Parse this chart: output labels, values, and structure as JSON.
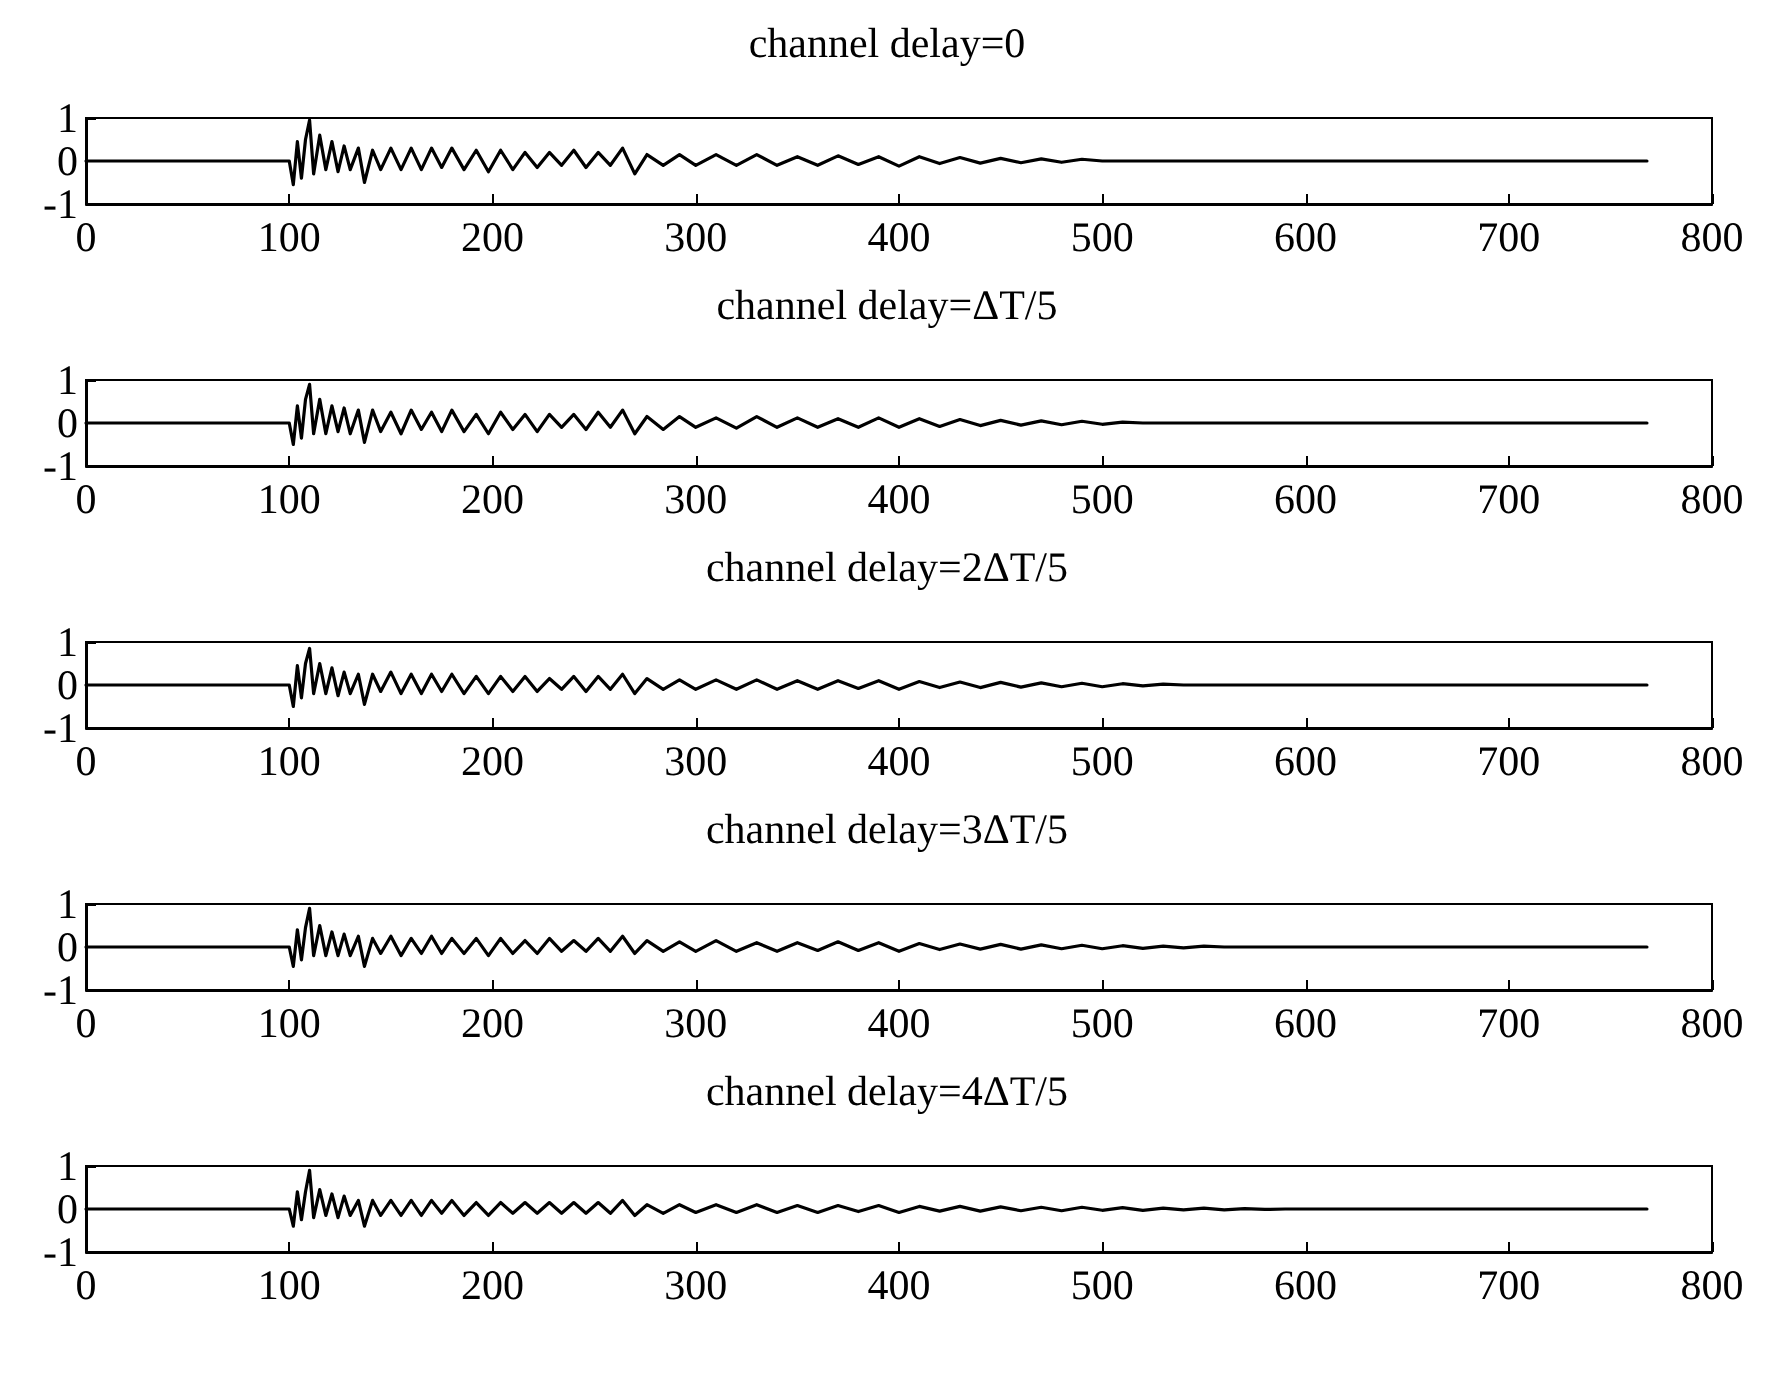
{
  "chart_data": [
    {
      "type": "line",
      "title": "channel delay=0",
      "color": "#000000",
      "marker": "none",
      "grid": false,
      "xlim": [
        0,
        800
      ],
      "xticks": [
        0,
        100,
        200,
        300,
        400,
        500,
        600,
        700,
        800
      ],
      "ylim": [
        -1,
        1
      ],
      "yticks": [
        -1,
        0,
        1
      ],
      "x": [
        0,
        100,
        102,
        104,
        106,
        108,
        110,
        112,
        115,
        118,
        121,
        124,
        127,
        130,
        134,
        137,
        141,
        145,
        150,
        155,
        160,
        165,
        170,
        175,
        180,
        186,
        192,
        198,
        204,
        210,
        216,
        222,
        228,
        234,
        240,
        246,
        252,
        258,
        264,
        270,
        276,
        284,
        292,
        300,
        310,
        320,
        330,
        340,
        350,
        360,
        370,
        380,
        390,
        400,
        410,
        420,
        430,
        440,
        450,
        460,
        470,
        480,
        490,
        500,
        768
      ],
      "values": [
        0,
        0,
        -0.55,
        0.45,
        -0.4,
        0.5,
        0.95,
        -0.3,
        0.6,
        -0.2,
        0.45,
        -0.25,
        0.35,
        -0.2,
        0.3,
        -0.5,
        0.25,
        -0.2,
        0.3,
        -0.2,
        0.3,
        -0.2,
        0.3,
        -0.15,
        0.3,
        -0.2,
        0.25,
        -0.25,
        0.25,
        -0.2,
        0.2,
        -0.15,
        0.2,
        -0.1,
        0.25,
        -0.15,
        0.2,
        -0.1,
        0.3,
        -0.3,
        0.15,
        -0.1,
        0.15,
        -0.1,
        0.15,
        -0.1,
        0.15,
        -0.1,
        0.1,
        -0.1,
        0.12,
        -0.08,
        0.1,
        -0.12,
        0.1,
        -0.06,
        0.08,
        -0.05,
        0.06,
        -0.04,
        0.05,
        -0.03,
        0.04,
        0,
        0
      ]
    },
    {
      "type": "line",
      "title": "channel delay=ΔT/5",
      "color": "#000000",
      "marker": "none",
      "grid": false,
      "xlim": [
        0,
        800
      ],
      "xticks": [
        0,
        100,
        200,
        300,
        400,
        500,
        600,
        700,
        800
      ],
      "ylim": [
        -1,
        1
      ],
      "yticks": [
        -1,
        0,
        1
      ],
      "x": [
        0,
        100,
        102,
        104,
        106,
        108,
        110,
        112,
        115,
        118,
        121,
        124,
        127,
        130,
        134,
        137,
        141,
        145,
        150,
        155,
        160,
        165,
        170,
        175,
        180,
        186,
        192,
        198,
        204,
        210,
        216,
        222,
        228,
        234,
        240,
        246,
        252,
        258,
        264,
        270,
        276,
        284,
        292,
        300,
        310,
        320,
        330,
        340,
        350,
        360,
        370,
        380,
        390,
        400,
        410,
        420,
        430,
        440,
        450,
        460,
        470,
        480,
        490,
        500,
        510,
        520,
        768
      ],
      "values": [
        0,
        0,
        -0.5,
        0.4,
        -0.35,
        0.55,
        0.9,
        -0.25,
        0.55,
        -0.25,
        0.4,
        -0.2,
        0.35,
        -0.25,
        0.3,
        -0.45,
        0.3,
        -0.2,
        0.25,
        -0.25,
        0.3,
        -0.15,
        0.25,
        -0.2,
        0.3,
        -0.2,
        0.2,
        -0.25,
        0.25,
        -0.15,
        0.2,
        -0.2,
        0.2,
        -0.1,
        0.2,
        -0.15,
        0.25,
        -0.1,
        0.3,
        -0.25,
        0.15,
        -0.15,
        0.15,
        -0.1,
        0.12,
        -0.12,
        0.15,
        -0.1,
        0.12,
        -0.1,
        0.1,
        -0.1,
        0.12,
        -0.1,
        0.1,
        -0.08,
        0.08,
        -0.06,
        0.06,
        -0.05,
        0.05,
        -0.04,
        0.04,
        -0.03,
        0.02,
        0,
        0
      ]
    },
    {
      "type": "line",
      "title": "channel delay=2ΔT/5",
      "color": "#000000",
      "marker": "none",
      "grid": false,
      "xlim": [
        0,
        800
      ],
      "xticks": [
        0,
        100,
        200,
        300,
        400,
        500,
        600,
        700,
        800
      ],
      "ylim": [
        -1,
        1
      ],
      "yticks": [
        -1,
        0,
        1
      ],
      "x": [
        0,
        100,
        102,
        104,
        106,
        108,
        110,
        112,
        115,
        118,
        121,
        124,
        127,
        130,
        134,
        137,
        141,
        145,
        150,
        155,
        160,
        165,
        170,
        175,
        180,
        186,
        192,
        198,
        204,
        210,
        216,
        222,
        228,
        234,
        240,
        246,
        252,
        258,
        264,
        270,
        276,
        284,
        292,
        300,
        310,
        320,
        330,
        340,
        350,
        360,
        370,
        380,
        390,
        400,
        410,
        420,
        430,
        440,
        450,
        460,
        470,
        480,
        490,
        500,
        510,
        520,
        530,
        540,
        768
      ],
      "values": [
        0,
        0,
        -0.5,
        0.45,
        -0.3,
        0.5,
        0.85,
        -0.2,
        0.5,
        -0.2,
        0.4,
        -0.25,
        0.3,
        -0.2,
        0.25,
        -0.45,
        0.25,
        -0.15,
        0.3,
        -0.2,
        0.25,
        -0.2,
        0.25,
        -0.15,
        0.25,
        -0.2,
        0.2,
        -0.2,
        0.2,
        -0.15,
        0.2,
        -0.15,
        0.15,
        -0.1,
        0.2,
        -0.15,
        0.2,
        -0.1,
        0.25,
        -0.2,
        0.15,
        -0.1,
        0.12,
        -0.1,
        0.12,
        -0.1,
        0.12,
        -0.1,
        0.1,
        -0.1,
        0.1,
        -0.08,
        0.1,
        -0.1,
        0.08,
        -0.06,
        0.07,
        -0.06,
        0.06,
        -0.05,
        0.05,
        -0.04,
        0.04,
        -0.04,
        0.03,
        -0.02,
        0.02,
        0,
        0
      ]
    },
    {
      "type": "line",
      "title": "channel delay=3ΔT/5",
      "color": "#000000",
      "marker": "none",
      "grid": false,
      "xlim": [
        0,
        800
      ],
      "xticks": [
        0,
        100,
        200,
        300,
        400,
        500,
        600,
        700,
        800
      ],
      "ylim": [
        -1,
        1
      ],
      "yticks": [
        -1,
        0,
        1
      ],
      "x": [
        0,
        100,
        102,
        104,
        106,
        108,
        110,
        112,
        115,
        118,
        121,
        124,
        127,
        130,
        134,
        137,
        141,
        145,
        150,
        155,
        160,
        165,
        170,
        175,
        180,
        186,
        192,
        198,
        204,
        210,
        216,
        222,
        228,
        234,
        240,
        246,
        252,
        258,
        264,
        270,
        276,
        284,
        292,
        300,
        310,
        320,
        330,
        340,
        350,
        360,
        370,
        380,
        390,
        400,
        410,
        420,
        430,
        440,
        450,
        460,
        470,
        480,
        490,
        500,
        510,
        520,
        530,
        540,
        550,
        560,
        768
      ],
      "values": [
        0,
        0,
        -0.45,
        0.4,
        -0.3,
        0.45,
        0.9,
        -0.2,
        0.5,
        -0.2,
        0.35,
        -0.2,
        0.3,
        -0.2,
        0.25,
        -0.45,
        0.2,
        -0.15,
        0.25,
        -0.2,
        0.2,
        -0.15,
        0.25,
        -0.15,
        0.2,
        -0.15,
        0.2,
        -0.2,
        0.2,
        -0.15,
        0.15,
        -0.15,
        0.2,
        -0.1,
        0.15,
        -0.1,
        0.2,
        -0.1,
        0.25,
        -0.15,
        0.15,
        -0.1,
        0.12,
        -0.1,
        0.15,
        -0.1,
        0.1,
        -0.1,
        0.1,
        -0.08,
        0.12,
        -0.08,
        0.1,
        -0.1,
        0.08,
        -0.06,
        0.07,
        -0.05,
        0.06,
        -0.05,
        0.05,
        -0.04,
        0.04,
        -0.04,
        0.03,
        -0.03,
        0.02,
        -0.02,
        0.02,
        0,
        0
      ]
    },
    {
      "type": "line",
      "title": "channel delay=4ΔT/5",
      "color": "#000000",
      "marker": "none",
      "grid": false,
      "xlim": [
        0,
        800
      ],
      "xticks": [
        0,
        100,
        200,
        300,
        400,
        500,
        600,
        700,
        800
      ],
      "ylim": [
        -1,
        1
      ],
      "yticks": [
        -1,
        0,
        1
      ],
      "x": [
        0,
        100,
        102,
        104,
        106,
        108,
        110,
        112,
        115,
        118,
        121,
        124,
        127,
        130,
        134,
        137,
        141,
        145,
        150,
        155,
        160,
        165,
        170,
        175,
        180,
        186,
        192,
        198,
        204,
        210,
        216,
        222,
        228,
        234,
        240,
        246,
        252,
        258,
        264,
        270,
        276,
        284,
        292,
        300,
        310,
        320,
        330,
        340,
        350,
        360,
        370,
        380,
        390,
        400,
        410,
        420,
        430,
        440,
        450,
        460,
        470,
        480,
        490,
        500,
        510,
        520,
        530,
        540,
        550,
        560,
        570,
        580,
        590,
        768
      ],
      "values": [
        0,
        0,
        -0.4,
        0.4,
        -0.25,
        0.4,
        0.9,
        -0.2,
        0.45,
        -0.15,
        0.35,
        -0.2,
        0.3,
        -0.15,
        0.2,
        -0.4,
        0.2,
        -0.15,
        0.2,
        -0.15,
        0.2,
        -0.15,
        0.2,
        -0.1,
        0.2,
        -0.15,
        0.15,
        -0.15,
        0.15,
        -0.1,
        0.15,
        -0.1,
        0.15,
        -0.1,
        0.15,
        -0.1,
        0.15,
        -0.1,
        0.2,
        -0.15,
        0.1,
        -0.1,
        0.1,
        -0.08,
        0.1,
        -0.08,
        0.1,
        -0.08,
        0.08,
        -0.08,
        0.08,
        -0.06,
        0.08,
        -0.08,
        0.06,
        -0.05,
        0.06,
        -0.05,
        0.05,
        -0.04,
        0.04,
        -0.04,
        0.04,
        -0.03,
        0.03,
        -0.03,
        0.02,
        -0.02,
        0.02,
        -0.02,
        0.01,
        -0.01,
        0,
        0
      ]
    }
  ]
}
